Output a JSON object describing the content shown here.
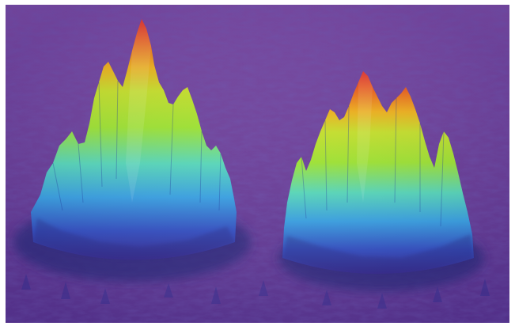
{
  "figure": {
    "subject": "two-peaked-3d-surface",
    "peaks": [
      {
        "name": "left-peak"
      },
      {
        "name": "right-peak"
      }
    ],
    "colors": {
      "background": "#6f3e98",
      "background_dark": "#4a2a7c",
      "low": "#2a2a8a",
      "mid_low": "#3aa0e0",
      "mid": "#58d6b8",
      "mid_high": "#9ee233",
      "high": "#f0b21e",
      "peak": "#e8301c"
    }
  }
}
